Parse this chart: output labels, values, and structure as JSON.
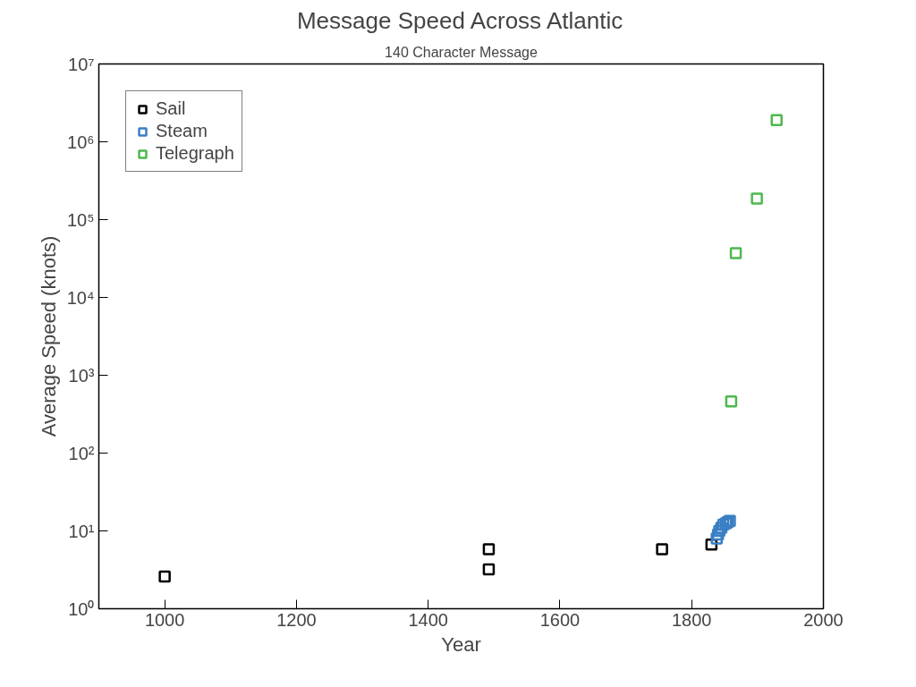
{
  "chart_data": {
    "type": "scatter",
    "title": "Message Speed Across Atlantic",
    "subtitle": "140 Character Message",
    "xlabel": "Year",
    "ylabel": "Average Speed (knots)",
    "log": "y",
    "marker": "square",
    "grid": false,
    "legend": "top left",
    "xlim": [
      900,
      2000
    ],
    "xticks": [
      1000,
      1200,
      1400,
      1600,
      1800,
      2000
    ],
    "ylim": [
      1,
      10000000
    ],
    "yticks": [
      {
        "value": 1,
        "label": "10⁰"
      },
      {
        "value": 10,
        "label": "10¹"
      },
      {
        "value": 100,
        "label": "10²"
      },
      {
        "value": 1000,
        "label": "10³"
      },
      {
        "value": 10000,
        "label": "10⁴"
      },
      {
        "value": 100000,
        "label": "10⁵"
      },
      {
        "value": 1000000,
        "label": "10⁶"
      },
      {
        "value": 10000000,
        "label": "10⁷"
      }
    ],
    "series": [
      {
        "name": "Sail",
        "color": "#000000",
        "x": [
          1000,
          1492,
          1492,
          1755,
          1830
        ],
        "values": [
          2.6,
          5.8,
          3.2,
          5.8,
          6.7
        ]
      },
      {
        "name": "Steam",
        "color": "#3a7fc4",
        "x": [
          1838,
          1840,
          1842,
          1845,
          1848,
          1852,
          1855,
          1858
        ],
        "values": [
          8,
          9,
          10,
          11,
          12,
          12.5,
          13,
          13.5
        ]
      },
      {
        "name": "Telegraph",
        "color": "#4db84d",
        "x": [
          1860,
          1867,
          1899,
          1929
        ],
        "values": [
          460,
          37000,
          186000,
          1900000
        ]
      }
    ]
  }
}
